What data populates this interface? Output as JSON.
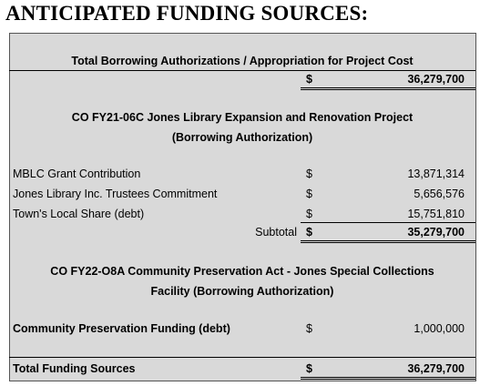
{
  "title": "ANTICIPATED FUNDING SOURCES:",
  "summary": {
    "label": "Total Borrowing Authorizations / Appropriation for Project Cost",
    "currency": "$",
    "amount": "36,279,700"
  },
  "sections": [
    {
      "heading": [
        "CO FY21-06C Jones Library Expansion and Renovation Project",
        "(Borrowing Authorization)"
      ],
      "items": [
        {
          "label": "MBLC Grant Contribution",
          "currency": "$",
          "amount": "13,871,314"
        },
        {
          "label": "Jones Library Inc. Trustees Commitment",
          "currency": "$",
          "amount": "5,656,576"
        },
        {
          "label": "Town's Local Share (debt)",
          "currency": "$",
          "amount": "15,751,810"
        }
      ],
      "subtotal": {
        "label": "Subtotal",
        "currency": "$",
        "amount": "35,279,700"
      }
    },
    {
      "heading": [
        "CO FY22-O8A  Community Preservation Act - Jones Special Collections",
        "Facility (Borrowing Authorization)"
      ],
      "items": [
        {
          "label": "Community Preservation Funding (debt)",
          "currency": "$",
          "amount": "1,000,000"
        }
      ]
    }
  ],
  "total": {
    "label": "Total Funding Sources",
    "currency": "$",
    "amount": "36,279,700"
  }
}
